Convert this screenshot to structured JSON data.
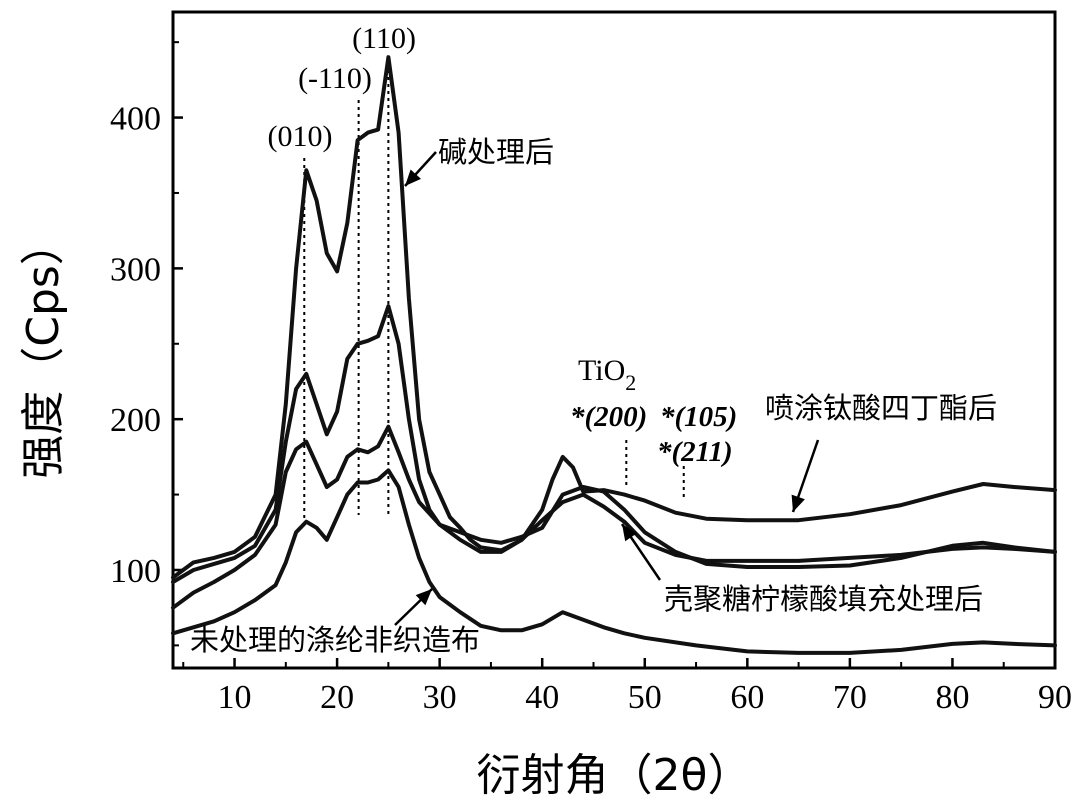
{
  "chart_data": {
    "type": "line",
    "title": "",
    "xlabel": "衍射角（2θ）",
    "ylabel": "强度（Cps）",
    "xlim": [
      4,
      90
    ],
    "ylim": [
      35,
      470
    ],
    "xticks": [
      10,
      20,
      30,
      40,
      50,
      60,
      70,
      80,
      90
    ],
    "yticks": [
      100,
      200,
      300,
      400
    ],
    "grid": false,
    "series": [
      {
        "name": "碱处理后",
        "x": [
          4,
          6,
          8,
          10,
          12,
          14,
          15,
          16,
          17,
          18,
          19,
          20,
          21,
          22,
          23,
          24,
          25,
          26,
          27,
          28,
          29,
          30,
          31,
          32,
          33,
          34,
          36,
          38,
          40,
          42,
          44,
          46,
          48,
          50,
          53,
          56,
          60,
          65,
          70,
          75,
          80,
          83,
          86,
          90
        ],
        "values": [
          95,
          105,
          108,
          112,
          122,
          150,
          210,
          300,
          365,
          345,
          310,
          298,
          330,
          385,
          390,
          392,
          440,
          390,
          280,
          200,
          165,
          150,
          135,
          128,
          120,
          115,
          113,
          120,
          133,
          145,
          150,
          142,
          132,
          118,
          110,
          106,
          106,
          106,
          108,
          110,
          114,
          115,
          114,
          112
        ]
      },
      {
        "name": "喷涂钛酸四丁酯后",
        "x": [
          4,
          6,
          8,
          10,
          12,
          14,
          15,
          16,
          17,
          18,
          19,
          20,
          21,
          22,
          23,
          24,
          25,
          26,
          27,
          28,
          29,
          30,
          32,
          34,
          36,
          38,
          40,
          41,
          42,
          43,
          44,
          46,
          48,
          50,
          53,
          56,
          60,
          65,
          70,
          75,
          80,
          83,
          86,
          90
        ],
        "values": [
          92,
          100,
          104,
          108,
          116,
          140,
          185,
          220,
          230,
          210,
          190,
          205,
          240,
          250,
          252,
          255,
          275,
          250,
          200,
          160,
          140,
          130,
          120,
          112,
          112,
          120,
          140,
          160,
          175,
          168,
          152,
          153,
          150,
          146,
          138,
          134,
          133,
          133,
          137,
          143,
          152,
          157,
          155,
          153
        ]
      },
      {
        "name": "壳聚糖柠檬酸填充处理后",
        "x": [
          4,
          6,
          8,
          10,
          12,
          14,
          15,
          16,
          17,
          18,
          19,
          20,
          21,
          22,
          23,
          24,
          25,
          26,
          27,
          28,
          30,
          32,
          34,
          36,
          38,
          40,
          42,
          44,
          46,
          48,
          50,
          53,
          56,
          60,
          65,
          70,
          75,
          80,
          83,
          86,
          90
        ],
        "values": [
          75,
          85,
          92,
          100,
          110,
          130,
          165,
          180,
          185,
          170,
          155,
          160,
          175,
          180,
          178,
          182,
          195,
          178,
          160,
          145,
          130,
          125,
          120,
          118,
          122,
          128,
          150,
          155,
          152,
          140,
          125,
          112,
          104,
          102,
          102,
          103,
          108,
          116,
          118,
          115,
          112
        ]
      },
      {
        "name": "未处理的涤纶非织造布",
        "x": [
          4,
          6,
          8,
          10,
          12,
          14,
          15,
          16,
          17,
          18,
          19,
          20,
          21,
          22,
          23,
          24,
          25,
          26,
          27,
          28,
          29,
          30,
          32,
          34,
          36,
          38,
          40,
          42,
          44,
          46,
          48,
          50,
          55,
          60,
          65,
          70,
          75,
          80,
          83,
          86,
          90
        ],
        "values": [
          58,
          62,
          66,
          72,
          80,
          90,
          105,
          125,
          132,
          128,
          120,
          135,
          150,
          158,
          158,
          160,
          166,
          155,
          130,
          108,
          92,
          82,
          72,
          63,
          60,
          60,
          64,
          72,
          67,
          62,
          58,
          55,
          50,
          46,
          45,
          45,
          47,
          51,
          52,
          51,
          50
        ]
      }
    ],
    "peak_labels": [
      "(010)",
      "(-110)",
      "(110)"
    ],
    "tio2_label": "TiO",
    "tio2_subscript": "2",
    "tio2_peaks": [
      "*(200)",
      "*(105)",
      "*(211)"
    ]
  }
}
